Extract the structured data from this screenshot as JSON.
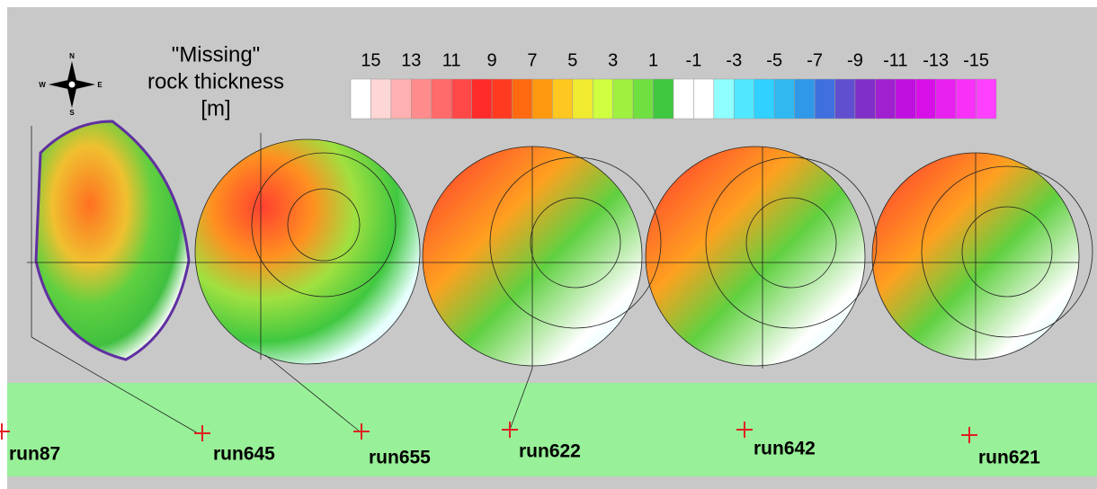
{
  "legend": {
    "title": [
      "\"Missing\"",
      "rock thickness",
      "[m]"
    ],
    "labels": [
      "15",
      "13",
      "11",
      "9",
      "7",
      "5",
      "3",
      "1",
      "-1",
      "-3",
      "-5",
      "-7",
      "-9",
      "-11",
      "-13",
      "-15"
    ],
    "colors": [
      "#ffffff",
      "#ffd6d6",
      "#ffb0b0",
      "#ff8c8c",
      "#ff6a6a",
      "#ff4848",
      "#ff2a2a",
      "#ff3a20",
      "#ff6a10",
      "#ff9a10",
      "#ffc820",
      "#f0ea30",
      "#d0ff40",
      "#a0f040",
      "#70e040",
      "#40c840",
      "#ffffff",
      "#ffffff",
      "#90ffff",
      "#50e8ff",
      "#30d0ff",
      "#30b8f0",
      "#3098e8",
      "#4070e0",
      "#6050d0",
      "#8030c8",
      "#a020d0",
      "#c010e0",
      "#d810e8",
      "#e820f0",
      "#f830f8",
      "#ff40ff"
    ]
  },
  "compass": {
    "n": "N",
    "s": "S",
    "e": "E",
    "w": "W"
  },
  "runs": [
    "run87",
    "run645",
    "run655",
    "run622",
    "run642",
    "run621"
  ]
}
